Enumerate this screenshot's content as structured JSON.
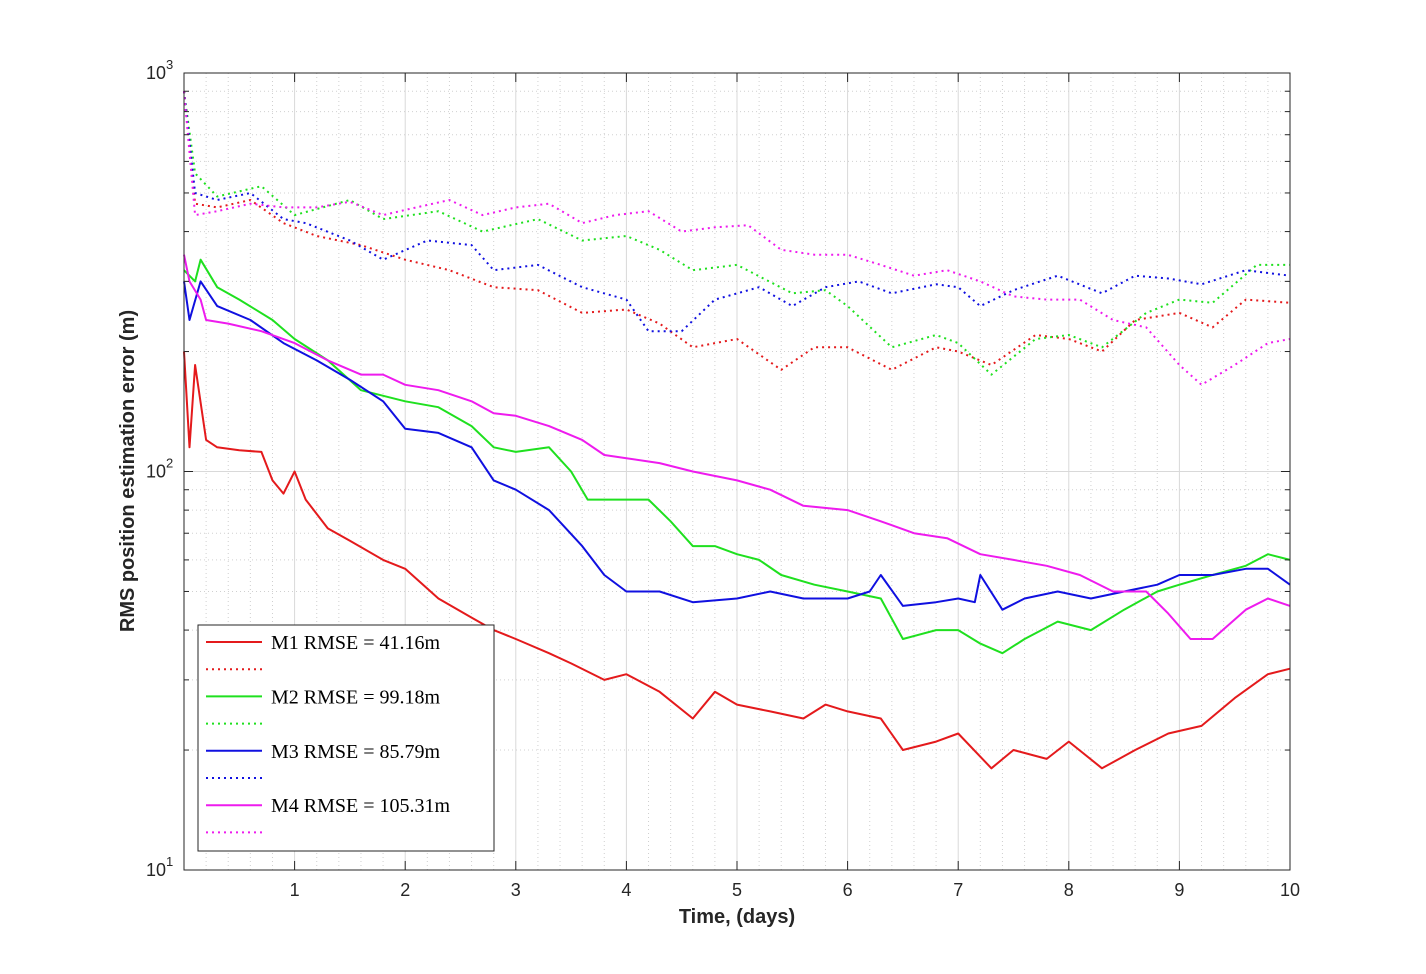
{
  "chart_data": {
    "type": "line",
    "title": "",
    "xlabel": "Time, (days)",
    "ylabel": "RMS position estimation error (m)",
    "xlim": [
      0,
      10
    ],
    "ylim": [
      10,
      1000
    ],
    "yscale": "log",
    "grid": "on (major + minor)",
    "legend_position": "bottom-left",
    "x_ticks": [
      "1",
      "2",
      "3",
      "4",
      "5",
      "6",
      "7",
      "8",
      "9",
      "10"
    ],
    "y_ticks": [
      {
        "base": "10",
        "exp": "1"
      },
      {
        "base": "10",
        "exp": "2"
      },
      {
        "base": "10",
        "exp": "3"
      }
    ],
    "legend": [
      {
        "label": "M1 RMSE = 41.16m",
        "color": "#e41a1c",
        "style": "solid"
      },
      {
        "label": "",
        "color": "#e41a1c",
        "style": "dotted"
      },
      {
        "label": "M2 RMSE = 99.18m",
        "color": "#1fe01f",
        "style": "solid"
      },
      {
        "label": "",
        "color": "#1fe01f",
        "style": "dotted"
      },
      {
        "label": "M3 RMSE = 85.79m",
        "color": "#1010e0",
        "style": "solid"
      },
      {
        "label": "",
        "color": "#1010e0",
        "style": "dotted"
      },
      {
        "label": "M4 RMSE = 105.31m",
        "color": "#ee1bee",
        "style": "solid"
      },
      {
        "label": "",
        "color": "#ee1bee",
        "style": "dotted"
      }
    ],
    "series": [
      {
        "color": "#e41a1c",
        "style": "solid",
        "x": [
          0,
          0.05,
          0.1,
          0.2,
          0.3,
          0.5,
          0.7,
          0.8,
          0.9,
          1.0,
          1.1,
          1.3,
          1.5,
          1.8,
          2.0,
          2.3,
          2.6,
          2.8,
          3.0,
          3.3,
          3.5,
          3.8,
          4.0,
          4.3,
          4.6,
          4.8,
          5.0,
          5.3,
          5.6,
          5.8,
          6.0,
          6.3,
          6.5,
          6.8,
          7.0,
          7.3,
          7.5,
          7.8,
          8.0,
          8.3,
          8.6,
          8.9,
          9.2,
          9.5,
          9.8,
          10.0
        ],
        "y": [
          200,
          115,
          185,
          120,
          115,
          113,
          112,
          95,
          88,
          100,
          85,
          72,
          67,
          60,
          57,
          48,
          43,
          40,
          38,
          35,
          33,
          30,
          31,
          28,
          24,
          28,
          26,
          25,
          24,
          26,
          25,
          24,
          20,
          21,
          22,
          18,
          20,
          19,
          21,
          18,
          20,
          22,
          23,
          27,
          31,
          32
        ]
      },
      {
        "color": "#e41a1c",
        "style": "dotted",
        "x": [
          0,
          0.1,
          0.3,
          0.6,
          0.9,
          1.2,
          1.6,
          2.0,
          2.4,
          2.8,
          3.2,
          3.6,
          4.0,
          4.3,
          4.6,
          5.0,
          5.4,
          5.7,
          6.0,
          6.4,
          6.8,
          7.0,
          7.3,
          7.7,
          8.0,
          8.3,
          8.6,
          9.0,
          9.3,
          9.6,
          10.0
        ],
        "y": [
          900,
          470,
          460,
          480,
          420,
          390,
          370,
          340,
          320,
          290,
          285,
          250,
          255,
          235,
          205,
          215,
          180,
          205,
          205,
          180,
          205,
          200,
          185,
          220,
          215,
          200,
          240,
          250,
          230,
          270,
          265
        ]
      },
      {
        "color": "#1fe01f",
        "style": "solid",
        "x": [
          0,
          0.1,
          0.15,
          0.3,
          0.5,
          0.8,
          1.0,
          1.3,
          1.6,
          2.0,
          2.3,
          2.6,
          2.8,
          3.0,
          3.3,
          3.5,
          3.65,
          3.8,
          4.0,
          4.2,
          4.4,
          4.6,
          4.8,
          5.0,
          5.2,
          5.4,
          5.7,
          6.0,
          6.3,
          6.5,
          6.8,
          7.0,
          7.2,
          7.4,
          7.6,
          7.9,
          8.2,
          8.5,
          8.8,
          9.0,
          9.3,
          9.6,
          9.8,
          10.0
        ],
        "y": [
          320,
          300,
          340,
          290,
          270,
          240,
          215,
          190,
          160,
          150,
          145,
          130,
          115,
          112,
          115,
          100,
          85,
          85,
          85,
          85,
          75,
          65,
          65,
          62,
          60,
          55,
          52,
          50,
          48,
          38,
          40,
          40,
          37,
          35,
          38,
          42,
          40,
          45,
          50,
          52,
          55,
          58,
          62,
          60
        ]
      },
      {
        "color": "#1fe01f",
        "style": "dotted",
        "x": [
          0,
          0.1,
          0.3,
          0.7,
          1.0,
          1.5,
          1.8,
          2.3,
          2.7,
          3.2,
          3.6,
          4.0,
          4.3,
          4.6,
          5.0,
          5.5,
          5.8,
          6.0,
          6.4,
          6.8,
          7.0,
          7.3,
          7.7,
          8.0,
          8.3,
          8.7,
          9.0,
          9.3,
          9.7,
          10.0
        ],
        "y": [
          900,
          560,
          490,
          520,
          440,
          480,
          430,
          450,
          400,
          430,
          380,
          390,
          360,
          320,
          330,
          280,
          285,
          260,
          205,
          220,
          210,
          175,
          215,
          220,
          205,
          250,
          270,
          265,
          330,
          330
        ]
      },
      {
        "color": "#1010e0",
        "style": "solid",
        "x": [
          0,
          0.05,
          0.15,
          0.3,
          0.6,
          0.9,
          1.2,
          1.5,
          1.8,
          2.0,
          2.3,
          2.6,
          2.8,
          3.0,
          3.3,
          3.6,
          3.8,
          4.0,
          4.3,
          4.6,
          5.0,
          5.3,
          5.6,
          6.0,
          6.2,
          6.3,
          6.5,
          6.8,
          7.0,
          7.15,
          7.2,
          7.4,
          7.6,
          7.9,
          8.2,
          8.5,
          8.8,
          9.0,
          9.3,
          9.6,
          9.8,
          10.0
        ],
        "y": [
          300,
          240,
          300,
          260,
          240,
          210,
          190,
          170,
          150,
          128,
          125,
          115,
          95,
          90,
          80,
          65,
          55,
          50,
          50,
          47,
          48,
          50,
          48,
          48,
          50,
          55,
          46,
          47,
          48,
          47,
          55,
          45,
          48,
          50,
          48,
          50,
          52,
          55,
          55,
          57,
          57,
          52
        ]
      },
      {
        "color": "#1010e0",
        "style": "dotted",
        "x": [
          0,
          0.1,
          0.3,
          0.6,
          0.9,
          1.1,
          1.5,
          1.8,
          2.2,
          2.6,
          2.8,
          3.2,
          3.6,
          4.0,
          4.2,
          4.5,
          4.8,
          5.2,
          5.5,
          5.8,
          6.1,
          6.4,
          6.8,
          7.0,
          7.2,
          7.5,
          7.9,
          8.3,
          8.6,
          8.9,
          9.2,
          9.6,
          10.0
        ],
        "y": [
          900,
          500,
          480,
          500,
          430,
          420,
          380,
          340,
          380,
          370,
          320,
          330,
          290,
          270,
          225,
          225,
          270,
          290,
          260,
          290,
          300,
          280,
          295,
          290,
          260,
          285,
          310,
          280,
          310,
          305,
          295,
          320,
          310
        ]
      },
      {
        "color": "#ee1bee",
        "style": "solid",
        "x": [
          0,
          0.05,
          0.15,
          0.2,
          0.4,
          0.7,
          1.0,
          1.3,
          1.6,
          1.8,
          2.0,
          2.3,
          2.6,
          2.8,
          3.0,
          3.3,
          3.6,
          3.8,
          4.0,
          4.3,
          4.6,
          5.0,
          5.3,
          5.6,
          6.0,
          6.3,
          6.6,
          6.9,
          7.2,
          7.5,
          7.8,
          8.1,
          8.4,
          8.7,
          8.9,
          9.1,
          9.3,
          9.6,
          9.8,
          10.0
        ],
        "y": [
          350,
          300,
          270,
          240,
          235,
          225,
          210,
          190,
          175,
          175,
          165,
          160,
          150,
          140,
          138,
          130,
          120,
          110,
          108,
          105,
          100,
          95,
          90,
          82,
          80,
          75,
          70,
          68,
          62,
          60,
          58,
          55,
          50,
          50,
          44,
          38,
          38,
          45,
          48,
          46
        ]
      },
      {
        "color": "#ee1bee",
        "style": "dotted",
        "x": [
          0,
          0.1,
          0.3,
          0.6,
          0.9,
          1.2,
          1.5,
          1.8,
          2.1,
          2.4,
          2.7,
          3.0,
          3.3,
          3.6,
          3.9,
          4.2,
          4.5,
          4.8,
          5.1,
          5.4,
          5.7,
          6.0,
          6.3,
          6.6,
          6.9,
          7.2,
          7.5,
          7.8,
          8.1,
          8.4,
          8.7,
          9.0,
          9.2,
          9.5,
          9.8,
          10.0
        ],
        "y": [
          900,
          440,
          450,
          470,
          460,
          460,
          475,
          440,
          460,
          480,
          440,
          460,
          470,
          420,
          440,
          450,
          400,
          410,
          415,
          360,
          350,
          350,
          330,
          310,
          320,
          300,
          275,
          270,
          270,
          240,
          230,
          185,
          165,
          185,
          210,
          215
        ]
      }
    ]
  }
}
